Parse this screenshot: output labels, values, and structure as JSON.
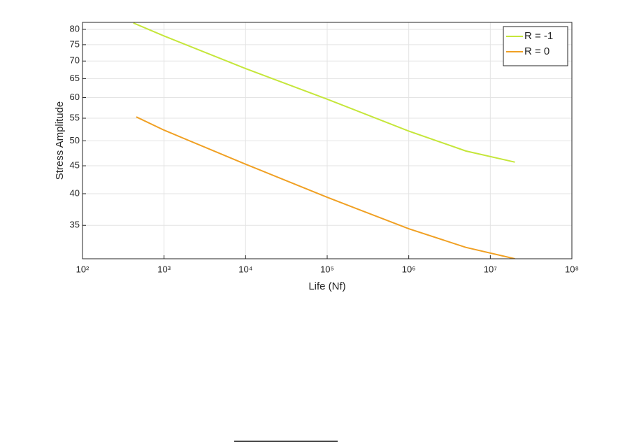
{
  "chart_data": {
    "type": "line",
    "xlabel": "Life (Nf)",
    "ylabel": "Stress Amplitude",
    "xscale": "log",
    "yscale": "log",
    "grid": true,
    "legend": "upper right",
    "xlim": [
      100,
      100000000
    ],
    "xticks": [
      {
        "value": 100,
        "label": "10²"
      },
      {
        "value": 1000,
        "label": "10³"
      },
      {
        "value": 10000,
        "label": "10⁴"
      },
      {
        "value": 100000,
        "label": "10⁵"
      },
      {
        "value": 1000000,
        "label": "10⁶"
      },
      {
        "value": 10000000,
        "label": "10⁷"
      },
      {
        "value": 100000000,
        "label": "10⁸"
      }
    ],
    "ylim": [
      30.4,
      82.4
    ],
    "yticks": [
      35,
      40,
      45,
      50,
      55,
      60,
      65,
      70,
      75,
      80
    ],
    "series": [
      {
        "name": "R = -1",
        "color": "#c5e63a",
        "x": [
          420,
          1000,
          10000,
          100000,
          1000000,
          5000000,
          20000000
        ],
        "values": [
          82.2,
          77.8,
          67.8,
          59.6,
          52.1,
          47.9,
          45.7
        ]
      },
      {
        "name": "R = 0",
        "color": "#f0a023",
        "x": [
          457,
          1000,
          10000,
          100000,
          1000000,
          5000000,
          20000000
        ],
        "values": [
          55.3,
          52.3,
          45.3,
          39.4,
          34.5,
          31.9,
          30.4
        ]
      }
    ]
  }
}
